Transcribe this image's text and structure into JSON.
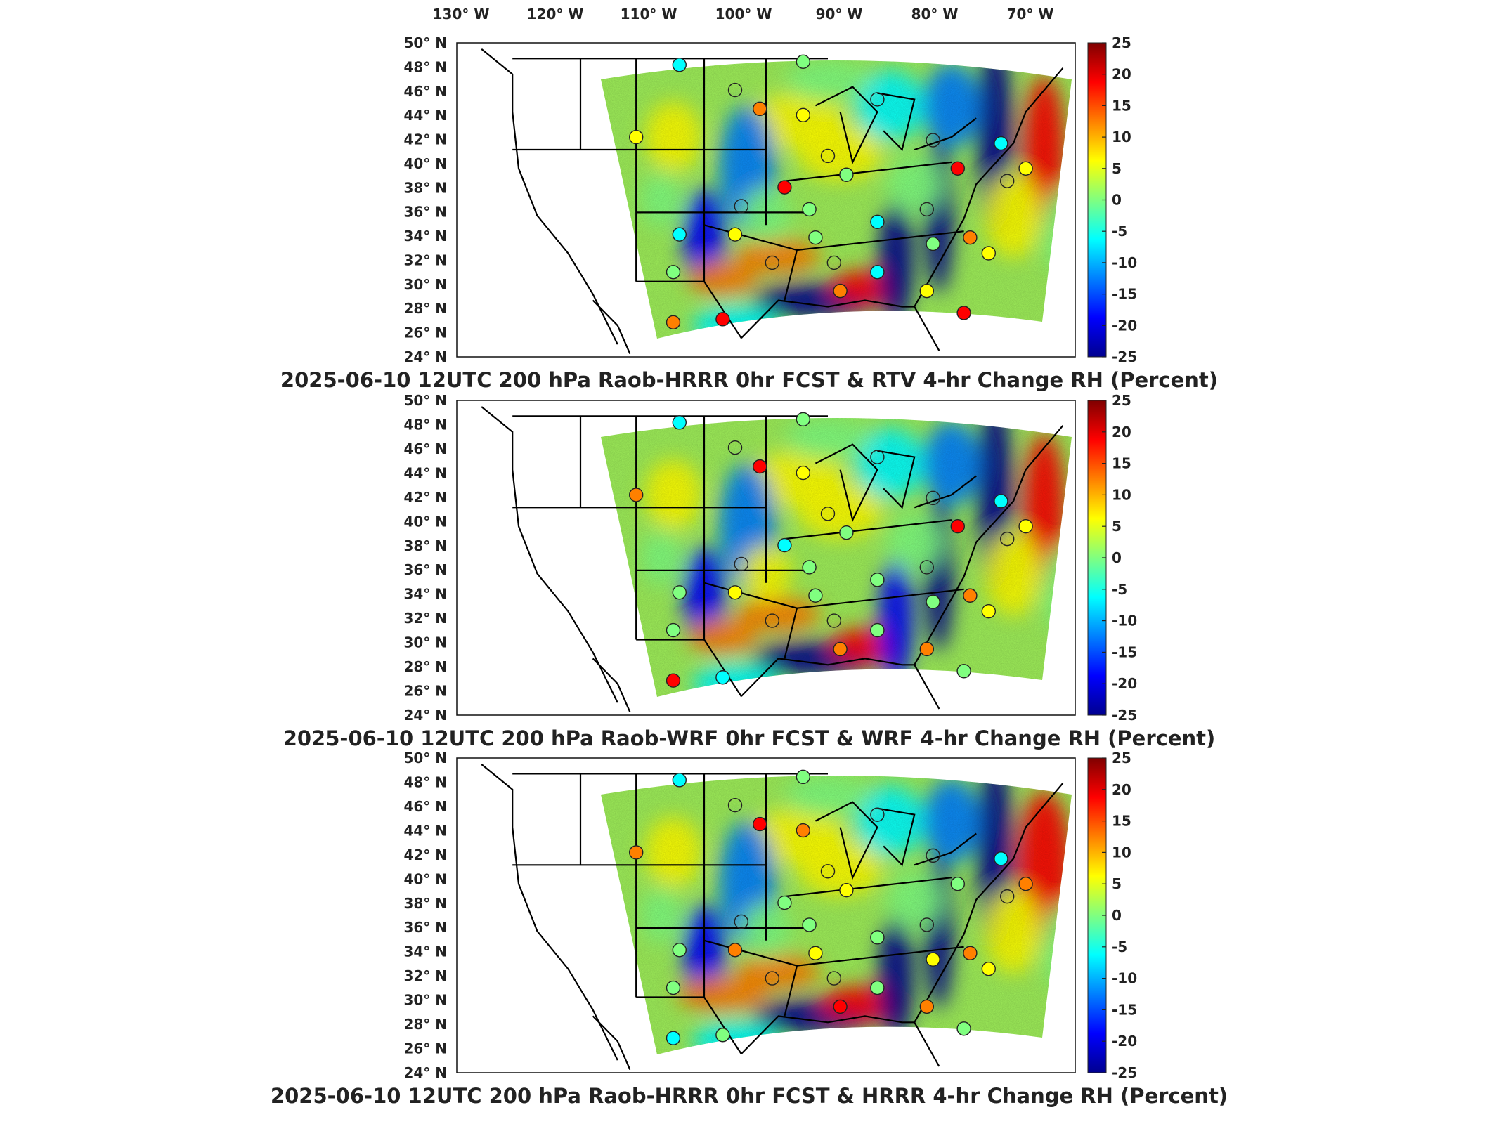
{
  "figure": {
    "top_lon_labels": [
      "130° W",
      "120° W",
      "110° W",
      "100° W",
      "90° W",
      "80° W",
      "70° W"
    ],
    "lat_labels": [
      "50° N",
      "48° N",
      "46° N",
      "44° N",
      "42° N",
      "40° N",
      "38° N",
      "36° N",
      "34° N",
      "32° N",
      "30° N",
      "28° N",
      "26° N",
      "24° N"
    ],
    "colorbar_ticks": [
      "25",
      "20",
      "15",
      "10",
      "5",
      "0",
      "-5",
      "-10",
      "-15",
      "-20",
      "-25"
    ],
    "colormap": [
      "#00008f",
      "#0000ff",
      "#0080ff",
      "#00ffff",
      "#80ff80",
      "#ffff00",
      "#ff8000",
      "#ff0000",
      "#800000"
    ]
  },
  "panels": [
    {
      "title": "2025-06-10 12UTC 200 hPa Raob-HRRR 0hr FCST & RTV 4-hr Change RH (Percent)"
    },
    {
      "title": "2025-06-10 12UTC 200 hPa Raob-WRF 0hr FCST & WRF 4-hr Change RH (Percent)"
    },
    {
      "title": "2025-06-10 12UTC 200 hPa Raob-HRRR 0hr FCST & HRRR 4-hr Change RH (Percent)"
    }
  ]
}
